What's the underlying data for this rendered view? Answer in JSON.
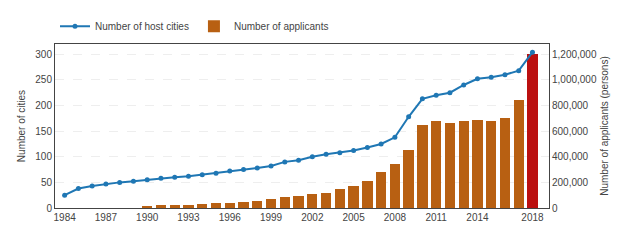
{
  "chart_data": {
    "type": "bar",
    "x": [
      1984,
      1985,
      1986,
      1987,
      1988,
      1989,
      1990,
      1991,
      1992,
      1993,
      1994,
      1995,
      1996,
      1997,
      1998,
      1999,
      2000,
      2001,
      2002,
      2003,
      2004,
      2005,
      2006,
      2007,
      2008,
      2009,
      2010,
      2011,
      2012,
      2013,
      2014,
      2015,
      2016,
      2017,
      2018
    ],
    "series": [
      {
        "name": "Number of host cities",
        "type": "line",
        "marker": "circle",
        "line_style": "solid",
        "values": [
          25,
          38,
          43,
          47,
          50,
          52,
          55,
          58,
          60,
          62,
          65,
          68,
          72,
          75,
          78,
          82,
          90,
          93,
          100,
          105,
          108,
          112,
          118,
          125,
          138,
          178,
          213,
          220,
          225,
          240,
          252,
          255,
          260,
          268,
          304
        ]
      },
      {
        "name": "Number of applicants",
        "type": "bar",
        "axis": "y2",
        "values": [
          0,
          0,
          0,
          0,
          0,
          0,
          15000,
          20000,
          25000,
          27000,
          30000,
          38000,
          42000,
          50000,
          57000,
          70000,
          82000,
          95000,
          108000,
          120000,
          145000,
          175000,
          210000,
          280000,
          345000,
          450000,
          650000,
          680000,
          660000,
          680000,
          690000,
          680000,
          700000,
          840000,
          1202000
        ],
        "colors": [
          "#b86012",
          "#b86012",
          "#b86012",
          "#b86012",
          "#b86012",
          "#b86012",
          "#b86012",
          "#b86012",
          "#b86012",
          "#b86012",
          "#b86012",
          "#b86012",
          "#b86012",
          "#b86012",
          "#b86012",
          "#b86012",
          "#b86012",
          "#b86012",
          "#b86012",
          "#b86012",
          "#b86012",
          "#b86012",
          "#b86012",
          "#b86012",
          "#b86012",
          "#b86012",
          "#b86012",
          "#b86012",
          "#b86012",
          "#b86012",
          "#b86012",
          "#b86012",
          "#b86012",
          "#b86012",
          "#bb1010"
        ]
      }
    ],
    "ylabel": "Number of cities",
    "y2label": "Number of applicants (persons)",
    "xlim": [
      1983.3,
      2019.2
    ],
    "xticks": [
      1984,
      1987,
      1990,
      1993,
      1996,
      1999,
      2002,
      2005,
      2008,
      2011,
      2014,
      2018
    ],
    "ylim": [
      0,
      320
    ],
    "yticks": [
      0,
      50,
      100,
      150,
      200,
      250,
      300
    ],
    "y2lim": [
      0,
      1280000
    ],
    "y2ticks": [
      0,
      {
        "value": 200000,
        "label": "200,000"
      },
      {
        "value": 400000,
        "label": "400,000"
      },
      {
        "value": 600000,
        "label": "600,000"
      },
      {
        "value": 800000,
        "label": "800,000"
      },
      {
        "value": 1000000,
        "label": "1,000,000"
      },
      {
        "value": 1200000,
        "label": "1,200,000"
      }
    ],
    "grid": true,
    "legend": "upper left"
  }
}
